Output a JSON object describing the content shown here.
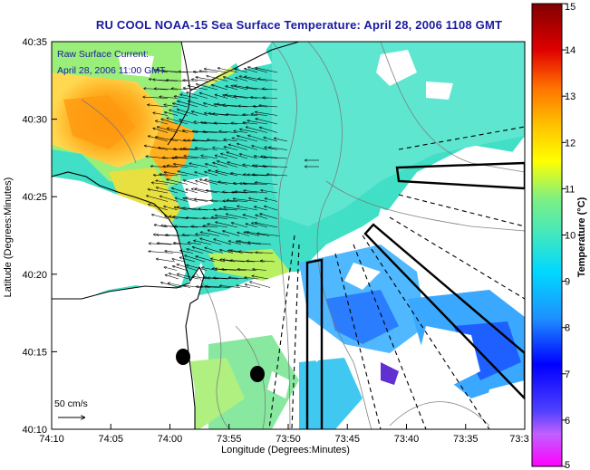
{
  "title": "RU COOL  NOAA-15  Sea Surface Temperature:  April 28, 2006 1108 GMT",
  "current_label": {
    "line1": "Raw Surface Current:",
    "line2": "April 28, 2006 11:00 GMT"
  },
  "scale_label": "50 cm/s",
  "x_axis": {
    "title": "Longitude (Degrees:Minutes)",
    "ticks": [
      "74:10",
      "74:05",
      "74:00",
      "73:55",
      "73:50",
      "73:45",
      "73:40",
      "73:35",
      "73:3"
    ]
  },
  "y_axis": {
    "title": "Latitude (Degrees:Minutes)",
    "ticks": [
      "40:35",
      "40:30",
      "40:25",
      "40:20",
      "40:15",
      "40:10"
    ]
  },
  "colorbar": {
    "title": "Temperature (°C)",
    "ticks": [
      "15",
      "14",
      "13",
      "12",
      "11",
      "10",
      "9",
      "8",
      "7",
      "6",
      "5"
    ],
    "range": [
      5,
      15
    ]
  },
  "colors": {
    "title": "#1a1aa0",
    "label": "#1a1aa0",
    "sst_main": "#3fe0c8",
    "land": "#ffffff",
    "coast": "#000000"
  }
}
